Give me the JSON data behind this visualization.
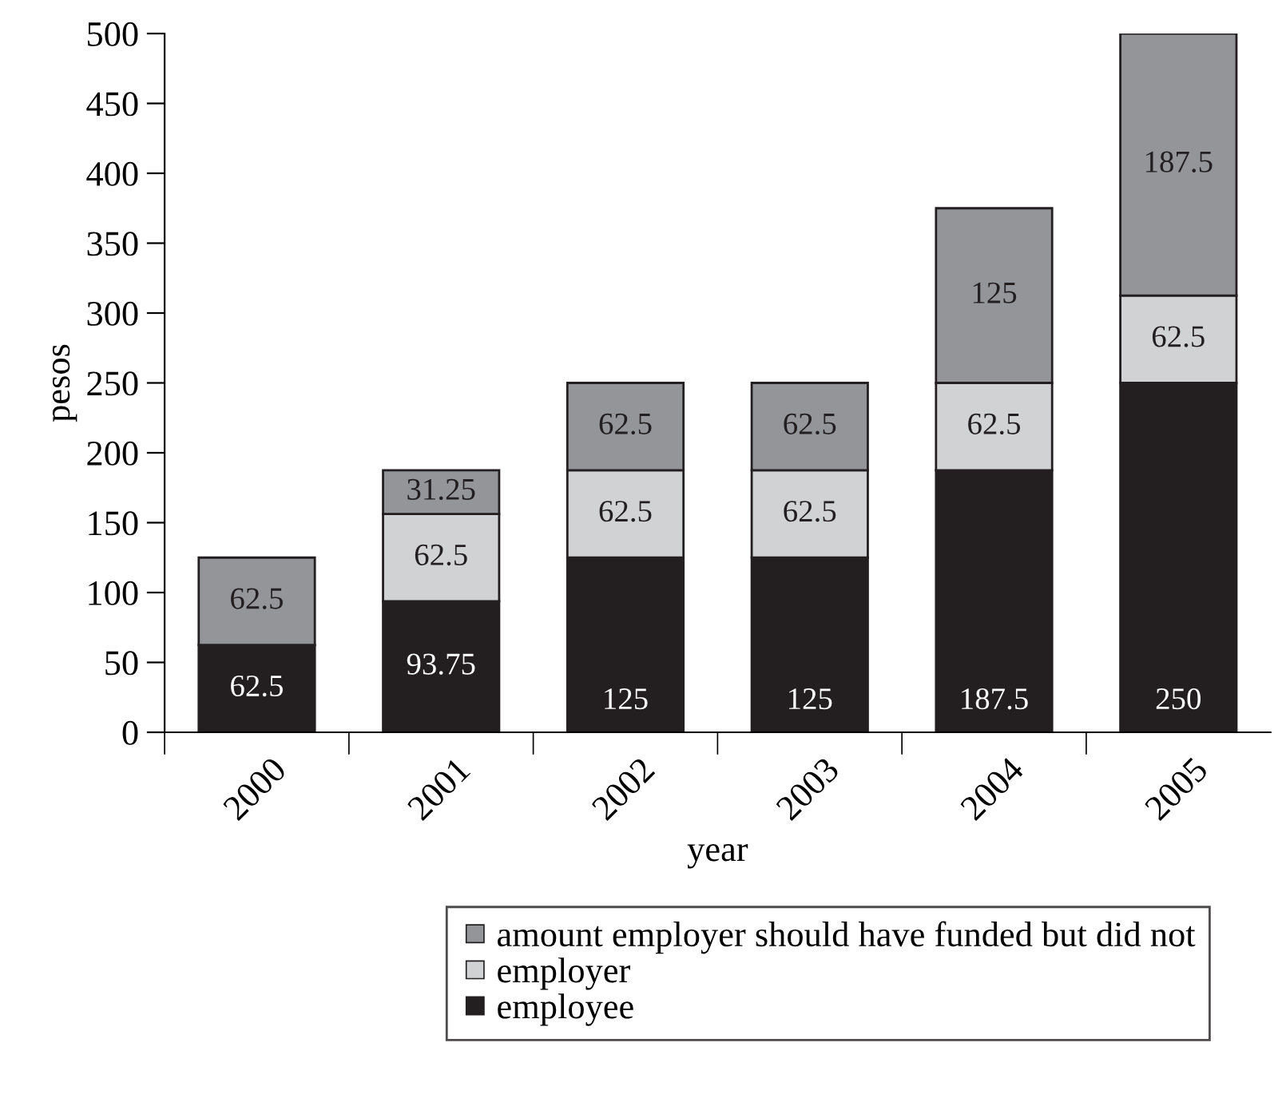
{
  "chart_data": {
    "type": "bar",
    "xlabel": "year",
    "ylabel": "pesos",
    "categories": [
      "2000",
      "2001",
      "2002",
      "2003",
      "2004",
      "2005"
    ],
    "series": [
      {
        "name": "employee",
        "color": "#231f20",
        "values": [
          62.5,
          93.75,
          125,
          125,
          187.5,
          250
        ]
      },
      {
        "name": "employer",
        "color": "#d1d2d4",
        "values": [
          null,
          62.5,
          62.5,
          62.5,
          62.5,
          62.5
        ]
      },
      {
        "name": "amount employer should have funded but did not",
        "color": "#939598",
        "values": [
          62.5,
          31.25,
          62.5,
          62.5,
          125,
          187.5
        ]
      }
    ],
    "stacked": true,
    "data_labels": true,
    "ylim": [
      0,
      500
    ],
    "yticks": [
      0,
      50,
      100,
      150,
      200,
      250,
      300,
      350,
      400,
      450,
      500
    ],
    "grid": false,
    "legend": "bottom"
  }
}
